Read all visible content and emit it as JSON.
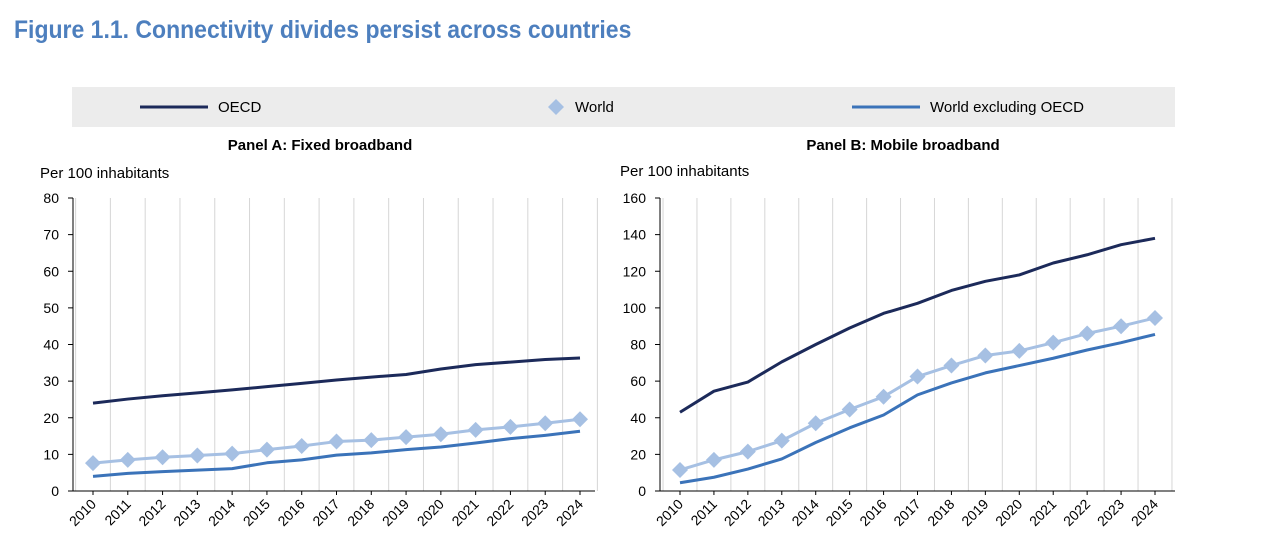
{
  "title": "Figure 1.1. Connectivity divides persist across countries",
  "legend": [
    {
      "name": "OECD",
      "marker": "line",
      "color": "#1c2a5a"
    },
    {
      "name": "World",
      "marker": "diamond",
      "color": "#a6c0e3"
    },
    {
      "name": "World excluding OECD",
      "marker": "line",
      "color": "#3b73b9"
    }
  ],
  "chart_data": [
    {
      "type": "line",
      "title": "Panel A: Fixed broadband",
      "ylabel": "Per 100 inhabitants",
      "ylim": [
        0,
        80
      ],
      "yticks": [
        0,
        10,
        20,
        30,
        40,
        50,
        60,
        70,
        80
      ],
      "x": [
        "2010",
        "2011",
        "2012",
        "2013",
        "2014",
        "2015",
        "2016",
        "2017",
        "2018",
        "2019",
        "2020",
        "2021",
        "2022",
        "2023",
        "2024"
      ],
      "series": [
        {
          "name": "OECD",
          "color": "#1c2a5a",
          "values": [
            24.0,
            25.1,
            26.0,
            26.8,
            27.6,
            28.5,
            29.4,
            30.3,
            31.1,
            31.8,
            33.3,
            34.5,
            35.2,
            35.9,
            36.3
          ]
        },
        {
          "name": "World",
          "color": "#a6c0e3",
          "values": [
            7.6,
            8.5,
            9.2,
            9.7,
            10.2,
            11.3,
            12.3,
            13.5,
            13.9,
            14.7,
            15.5,
            16.7,
            17.5,
            18.5,
            19.6
          ]
        },
        {
          "name": "World excluding OECD",
          "color": "#3b73b9",
          "values": [
            4.0,
            4.8,
            5.3,
            5.7,
            6.1,
            7.7,
            8.5,
            9.8,
            10.4,
            11.3,
            12.0,
            13.1,
            14.3,
            15.2,
            16.3
          ]
        }
      ],
      "grid": true
    },
    {
      "type": "line",
      "title": "Panel B: Mobile broadband",
      "ylabel": "Per 100 inhabitants",
      "ylim": [
        0,
        160
      ],
      "yticks": [
        0,
        20,
        40,
        60,
        80,
        100,
        120,
        140,
        160
      ],
      "x": [
        "2010",
        "2011",
        "2012",
        "2013",
        "2014",
        "2015",
        "2016",
        "2017",
        "2018",
        "2019",
        "2020",
        "2021",
        "2022",
        "2023",
        "2024"
      ],
      "series": [
        {
          "name": "OECD",
          "color": "#1c2a5a",
          "values": [
            43,
            54.5,
            59.5,
            70.5,
            80,
            89,
            97,
            102.5,
            109.5,
            114.5,
            118,
            124.5,
            129,
            134.5,
            138
          ]
        },
        {
          "name": "World",
          "color": "#a6c0e3",
          "values": [
            11.5,
            17,
            21.5,
            27.5,
            37,
            44.5,
            51.5,
            62.5,
            68.5,
            74,
            76.5,
            81,
            86,
            90,
            94.5
          ]
        },
        {
          "name": "World excluding OECD",
          "color": "#3b73b9",
          "values": [
            4.5,
            7.5,
            12,
            17.5,
            26.5,
            34.5,
            41.5,
            52.5,
            59,
            64.5,
            68.5,
            72.5,
            77,
            81,
            85.5
          ]
        }
      ],
      "grid": true
    }
  ]
}
